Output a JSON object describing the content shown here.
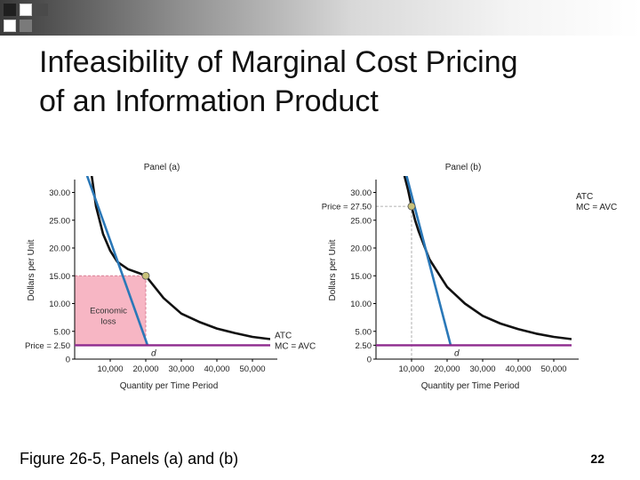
{
  "slide": {
    "title_line1": "Infeasibility of Marginal Cost Pricing",
    "title_line2": "of an Information Product",
    "caption": "Figure 26-5, Panels (a) and (b)",
    "page_number": "22"
  },
  "colors": {
    "atc": "#111111",
    "demand": "#2a78b8",
    "mc": "#8e2a8e",
    "loss_fill": "#f7b6c4",
    "point": "#c9c27a"
  },
  "chart_data": [
    {
      "type": "line",
      "title": "Panel (a)",
      "xlabel": "Quantity per Time Period",
      "ylabel": "Dollars per Unit",
      "xlim": [
        0,
        55000
      ],
      "ylim": [
        0,
        32
      ],
      "x_ticks": [
        "10,000",
        "20,000",
        "30,000",
        "40,000",
        "50,000"
      ],
      "y_ticks": [
        "0",
        "5.00",
        "10.00",
        "15.00",
        "20.00",
        "25.00",
        "30.00"
      ],
      "price_label": "Price = 2.50",
      "price": 2.5,
      "series": [
        {
          "name": "ATC",
          "label": "ATC",
          "x": [
            4800,
            6000,
            8000,
            10000,
            12000,
            15000,
            18000,
            20000,
            25000,
            30000,
            35000,
            40000,
            45000,
            50000,
            55000
          ],
          "y": [
            33,
            27.5,
            22.5,
            19.5,
            17.5,
            16.2,
            15.5,
            15,
            11,
            8.2,
            6.7,
            5.5,
            4.7,
            4,
            3.6
          ]
        },
        {
          "name": "d",
          "label": "d",
          "x": [
            3500,
            20500
          ],
          "y": [
            33,
            2.5
          ]
        },
        {
          "name": "MC = AVC",
          "label": "MC = AVC",
          "x": [
            0,
            55000
          ],
          "y": [
            2.5,
            2.5
          ]
        }
      ],
      "shaded_region": {
        "label_line1": "Economic",
        "label_line2": "loss",
        "x": [
          0,
          20000
        ],
        "y": [
          2.5,
          15
        ]
      },
      "highlight_point": {
        "x": 20000,
        "y": 15
      }
    },
    {
      "type": "line",
      "title": "Panel (b)",
      "xlabel": "Quantity per Time Period",
      "ylabel": "Dollars per Unit",
      "xlim": [
        0,
        55000
      ],
      "ylim": [
        0,
        32
      ],
      "x_ticks": [
        "10,000",
        "20,000",
        "30,000",
        "40,000",
        "50,000"
      ],
      "y_ticks": [
        "0",
        "2.50",
        "5.00",
        "10.00",
        "15.00",
        "20.00",
        "25.00",
        "30.00"
      ],
      "price_label": "Price = 27.50",
      "price": 27.5,
      "series": [
        {
          "name": "ATC",
          "label": "ATC",
          "x": [
            8000,
            9000,
            10000,
            11000,
            12000,
            15000,
            18000,
            20000,
            25000,
            30000,
            35000,
            40000,
            45000,
            50000,
            55000
          ],
          "y": [
            33,
            30.5,
            27.5,
            25,
            23,
            18,
            15,
            13,
            10,
            7.8,
            6.4,
            5.4,
            4.6,
            4,
            3.6
          ]
        },
        {
          "name": "d",
          "label": "d",
          "x": [
            8600,
            21000
          ],
          "y": [
            33,
            2.5
          ]
        },
        {
          "name": "MC = AVC",
          "label": "MC = AVC",
          "x": [
            0,
            55000
          ],
          "y": [
            2.5,
            2.5
          ]
        }
      ],
      "highlight_point": {
        "x": 10000,
        "y": 27.5
      }
    }
  ]
}
